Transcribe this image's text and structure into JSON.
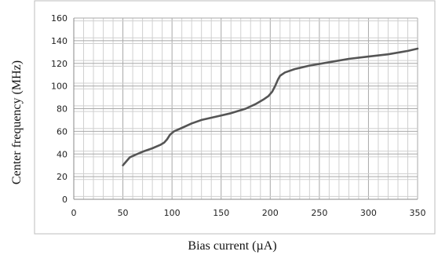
{
  "chart_data": {
    "type": "line",
    "xlabel": "Bias current (µA)",
    "ylabel": "Center frequency (MHz)",
    "xlim": [
      0,
      350
    ],
    "ylim": [
      0,
      160
    ],
    "x_ticks": [
      "0",
      "50",
      "100",
      "150",
      "200",
      "250",
      "300",
      "350"
    ],
    "y_ticks": [
      "0",
      "20",
      "40",
      "60",
      "80",
      "100",
      "120",
      "140",
      "160"
    ],
    "grid": true,
    "legend": "none",
    "line_color": "#555555",
    "series": [
      {
        "x": [
          50,
          53,
          57,
          62,
          70,
          80,
          88,
          92,
          95,
          98,
          102,
          110,
          120,
          130,
          145,
          160,
          175,
          185,
          193,
          198,
          202,
          205,
          208,
          210,
          215,
          225,
          240,
          260,
          280,
          300,
          320,
          340,
          350
        ],
        "y": [
          30,
          33,
          37,
          39,
          42,
          45,
          48,
          50,
          53,
          57,
          60,
          63,
          67,
          70,
          73,
          76,
          80,
          84,
          88,
          91,
          95,
          100,
          106,
          109,
          112,
          115,
          118,
          121,
          124,
          126,
          128,
          131,
          133
        ]
      }
    ]
  }
}
